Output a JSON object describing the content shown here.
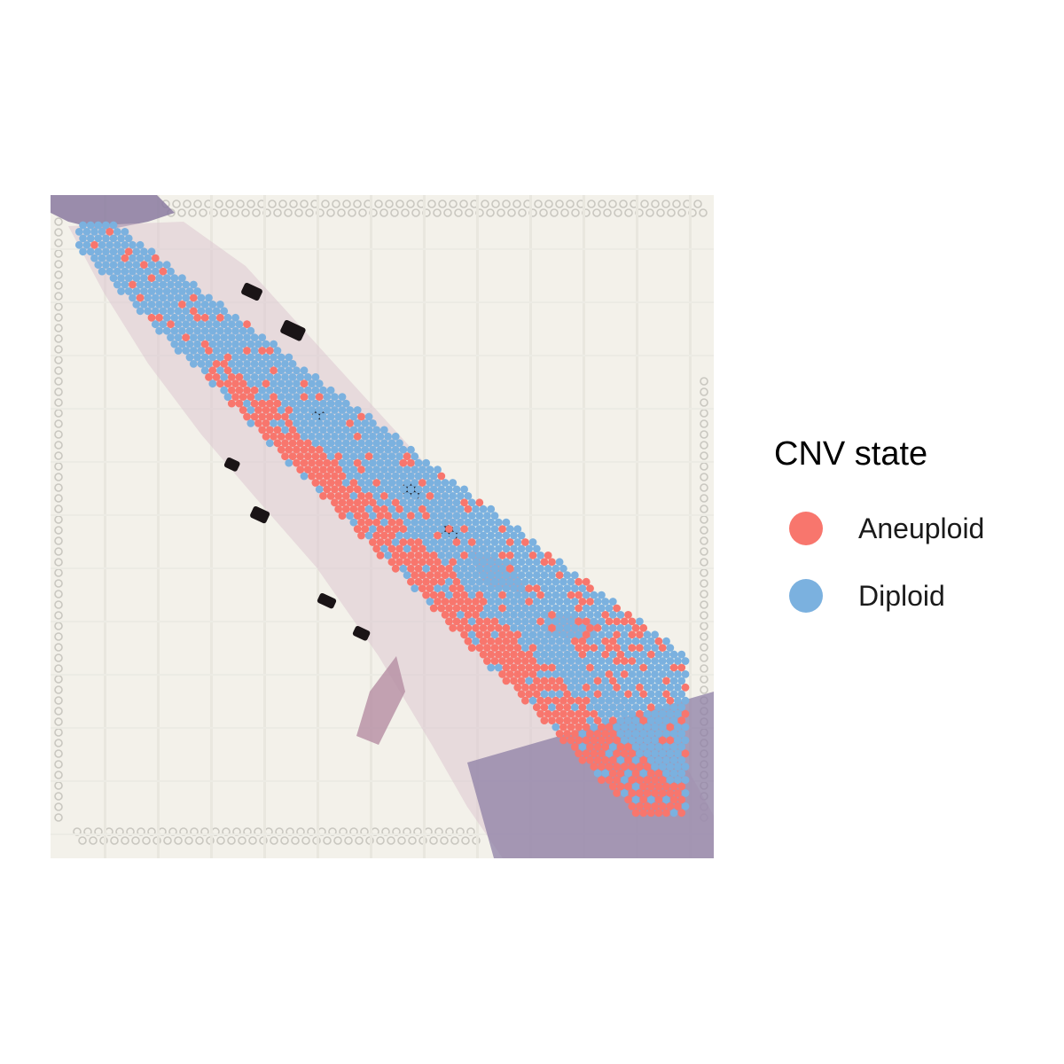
{
  "chart_data": {
    "type": "scatter",
    "background": "H&E tissue image with Visium spot array",
    "legend": {
      "title": "CNV state",
      "position": "right",
      "entries": [
        {
          "label": "Aneuploid",
          "color": "#F8766D"
        },
        {
          "label": "Diploid",
          "color": "#7BB1DF"
        }
      ]
    },
    "axes": "hidden",
    "grid": false,
    "series": [
      {
        "name": "Aneuploid",
        "color": "#F8766D"
      },
      {
        "name": "Diploid",
        "color": "#7BB1DF"
      }
    ]
  },
  "legend": {
    "title": "CNV state",
    "items": [
      {
        "label": "Aneuploid",
        "color": "#F8766D"
      },
      {
        "label": "Diploid",
        "color": "#7BB1DF"
      }
    ]
  }
}
